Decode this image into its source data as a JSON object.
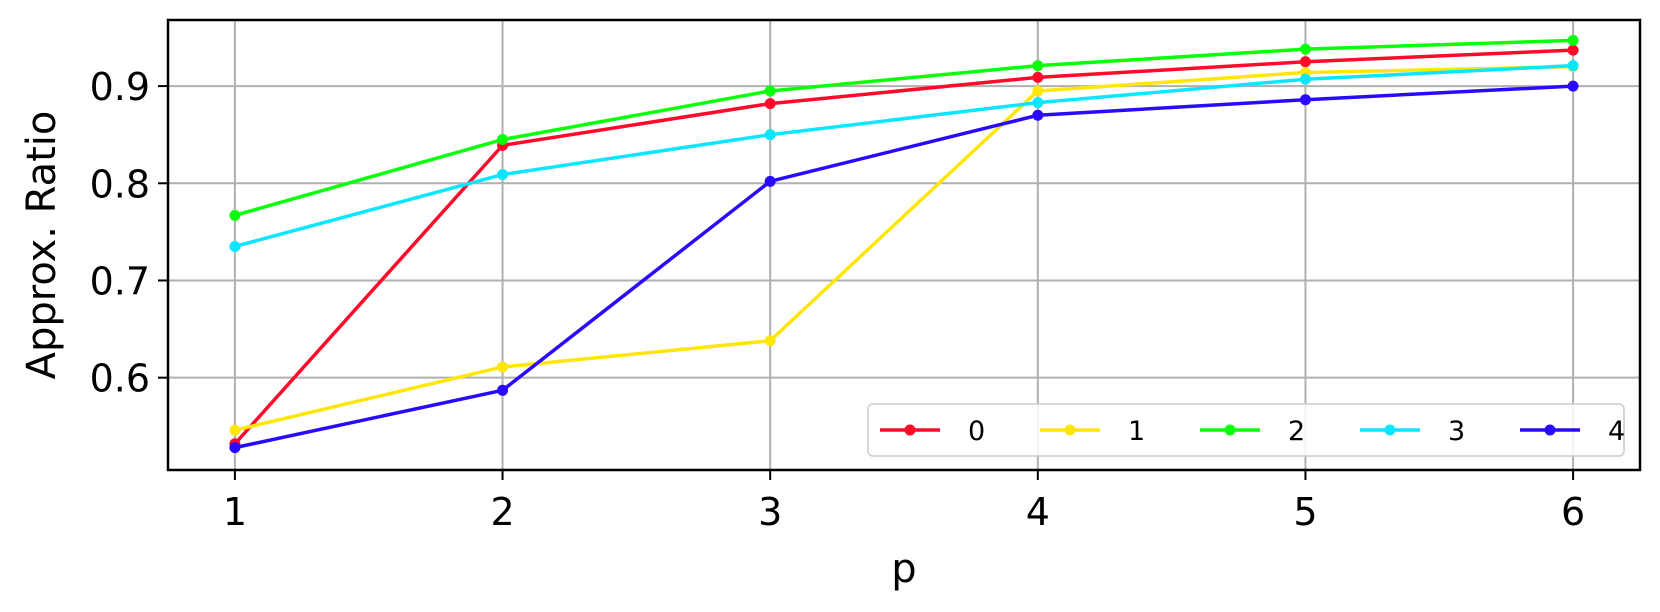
{
  "chart_data": {
    "type": "line",
    "xlabel": "p",
    "ylabel": "Approx. Ratio",
    "x": [
      1,
      2,
      3,
      4,
      5,
      6
    ],
    "xlim": [
      0.75,
      6.25
    ],
    "ylim": [
      0.505,
      0.968
    ],
    "xticks": [
      1,
      2,
      3,
      4,
      5,
      6
    ],
    "yticks": [
      0.6,
      0.7,
      0.8,
      0.9
    ],
    "ytick_labels": [
      "0.6",
      "0.7",
      "0.8",
      "0.9"
    ],
    "grid": true,
    "legend": {
      "placement": "lower-right",
      "columns": 5
    },
    "series": [
      {
        "name": "0",
        "color": "#ff0a2a",
        "values": [
          0.532,
          0.839,
          0.882,
          0.909,
          0.925,
          0.937
        ]
      },
      {
        "name": "1",
        "color": "#ffe60a",
        "values": [
          0.546,
          0.611,
          0.638,
          0.895,
          0.914,
          0.92
        ]
      },
      {
        "name": "2",
        "color": "#0aff0a",
        "values": [
          0.767,
          0.845,
          0.895,
          0.921,
          0.938,
          0.947
        ]
      },
      {
        "name": "3",
        "color": "#0ae6ff",
        "values": [
          0.735,
          0.809,
          0.85,
          0.883,
          0.907,
          0.921
        ]
      },
      {
        "name": "4",
        "color": "#2a0aff",
        "values": [
          0.528,
          0.587,
          0.802,
          0.87,
          0.886,
          0.9
        ]
      }
    ]
  }
}
